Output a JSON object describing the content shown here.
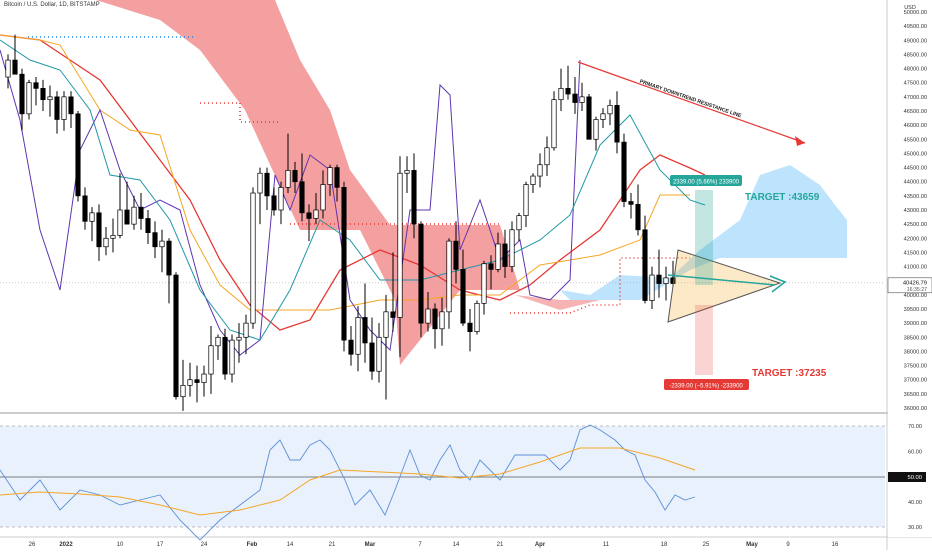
{
  "header": {
    "symbol_line": "Bitcoin / U.S. Dollar, 1D, BITSTAMP",
    "currency": "USD"
  },
  "price_axis": {
    "ticks": [
      "50000.00",
      "49500.00",
      "49000.00",
      "48500.00",
      "48000.00",
      "47500.00",
      "47000.00",
      "46500.00",
      "46000.00",
      "45500.00",
      "45000.00",
      "44500.00",
      "44000.00",
      "43500.00",
      "43000.00",
      "42500.00",
      "42000.00",
      "41500.00",
      "41000.00",
      "40500.00",
      "40000.00",
      "39500.00",
      "39000.00",
      "38500.00",
      "38000.00",
      "37500.00",
      "37000.00",
      "36500.00",
      "36000.00"
    ],
    "last_price": "40426.79",
    "countdown": "16:35:27"
  },
  "rsi_axis": {
    "ticks": [
      "70.00",
      "60.00",
      "50.00",
      "40.00",
      "30.00"
    ],
    "current": "50.00"
  },
  "time_axis": {
    "labels": [
      "26",
      "2022",
      "10",
      "17",
      "24",
      "Feb",
      "14",
      "21",
      "Mar",
      "7",
      "14",
      "21",
      "Apr",
      "11",
      "18",
      "25",
      "May",
      "9",
      "16"
    ]
  },
  "annotations": {
    "trendline_label": "PRIMARY DOWNTREND RESISTANCE LINE",
    "target_up": "TARGET :43659",
    "target_down": "TARGET :37235",
    "long_box_label": "2339.00 (5.66%) 233900",
    "short_box_label": "-2339.00 (−5.91%) -233900"
  },
  "colors": {
    "up_candle": "#ffffff",
    "down_candle": "#000000",
    "cloud_bear": "#f08080",
    "cloud_bull": "#87cefa",
    "ema_red": "#e53935",
    "orange": "#f5a623",
    "purple": "#5e35b1",
    "teal": "#2196a6",
    "rsi_line": "#5b8fd6",
    "rsi_ma": "#f5a623",
    "target_up": "#26a69a",
    "target_down": "#e53935"
  },
  "chart_data": {
    "type": "candlestick",
    "title": "Bitcoin / U.S. Dollar, 1D, BITSTAMP",
    "ylim": [
      36000,
      50000
    ],
    "candles": [
      [
        47700,
        48500,
        47300,
        48300
      ],
      [
        48300,
        49200,
        47900,
        47800
      ],
      [
        47800,
        48000,
        45800,
        46400
      ],
      [
        46400,
        47600,
        46200,
        47500
      ],
      [
        47500,
        47700,
        46700,
        47300
      ],
      [
        47300,
        47600,
        46500,
        46900
      ],
      [
        46900,
        47400,
        46300,
        47000
      ],
      [
        47000,
        47200,
        45700,
        46200
      ],
      [
        46200,
        47200,
        45800,
        47000
      ],
      [
        47000,
        47200,
        45900,
        46400
      ],
      [
        46400,
        46500,
        43300,
        43500
      ],
      [
        43500,
        43800,
        42300,
        42600
      ],
      [
        42600,
        43100,
        41900,
        42900
      ],
      [
        42900,
        43200,
        41200,
        41700
      ],
      [
        41700,
        42400,
        41400,
        42000
      ],
      [
        42000,
        42700,
        41500,
        42100
      ],
      [
        42100,
        44300,
        42000,
        43000
      ],
      [
        43000,
        44000,
        42500,
        42500
      ],
      [
        42500,
        43500,
        42300,
        43100
      ],
      [
        43100,
        43600,
        42300,
        42700
      ],
      [
        42700,
        43000,
        41800,
        42200
      ],
      [
        42200,
        42600,
        41300,
        41700
      ],
      [
        41700,
        42300,
        40800,
        41900
      ],
      [
        41900,
        42000,
        39700,
        40700
      ],
      [
        40700,
        40800,
        36300,
        36400
      ],
      [
        36400,
        37700,
        35900,
        36800
      ],
      [
        36800,
        37600,
        36400,
        37000
      ],
      [
        37000,
        37500,
        36200,
        36900
      ],
      [
        36900,
        37500,
        36400,
        37200
      ],
      [
        37200,
        38900,
        36500,
        38200
      ],
      [
        38200,
        38600,
        37700,
        38500
      ],
      [
        38500,
        38800,
        37000,
        37200
      ],
      [
        37200,
        38600,
        36900,
        38400
      ],
      [
        38400,
        39000,
        37600,
        38500
      ],
      [
        38500,
        39300,
        37900,
        39000
      ],
      [
        39000,
        43800,
        38800,
        43600
      ],
      [
        43600,
        44500,
        42500,
        44300
      ],
      [
        44300,
        44500,
        43000,
        43500
      ],
      [
        43500,
        43800,
        42800,
        43000
      ],
      [
        43000,
        44000,
        42500,
        43800
      ],
      [
        43800,
        45700,
        43600,
        44400
      ],
      [
        44400,
        44700,
        43600,
        44000
      ],
      [
        44000,
        45000,
        42600,
        42900
      ],
      [
        42900,
        43200,
        41900,
        42700
      ],
      [
        42700,
        43600,
        42500,
        43000
      ],
      [
        43000,
        44400,
        42700,
        43900
      ],
      [
        43900,
        44600,
        43500,
        44500
      ],
      [
        44500,
        44600,
        43300,
        43800
      ],
      [
        43800,
        44000,
        38000,
        38400
      ],
      [
        38400,
        38900,
        37500,
        37900
      ],
      [
        37900,
        39600,
        37300,
        39200
      ],
      [
        39200,
        40400,
        37600,
        38300
      ],
      [
        38300,
        39200,
        37000,
        37300
      ],
      [
        37300,
        39000,
        36900,
        38500
      ],
      [
        38500,
        40000,
        36300,
        39400
      ],
      [
        39400,
        41500,
        38700,
        39200
      ],
      [
        39200,
        44900,
        37800,
        44300
      ],
      [
        44300,
        44900,
        43600,
        44400
      ],
      [
        44400,
        45000,
        42000,
        42500
      ],
      [
        42500,
        42600,
        38500,
        39000
      ],
      [
        39000,
        40100,
        38700,
        39500
      ],
      [
        39500,
        39700,
        38100,
        38800
      ],
      [
        38800,
        39900,
        38200,
        39400
      ],
      [
        39400,
        42000,
        38800,
        41900
      ],
      [
        41900,
        42600,
        40400,
        40900
      ],
      [
        40900,
        41600,
        38900,
        39000
      ],
      [
        39000,
        39500,
        38000,
        38700
      ],
      [
        38700,
        39800,
        38600,
        39700
      ],
      [
        39700,
        41200,
        39300,
        41100
      ],
      [
        41100,
        41400,
        40200,
        40900
      ],
      [
        40900,
        42200,
        40800,
        41800
      ],
      [
        41800,
        42300,
        40600,
        41000
      ],
      [
        41000,
        42600,
        40800,
        42300
      ],
      [
        42300,
        42900,
        41900,
        42800
      ],
      [
        42800,
        44000,
        42400,
        43900
      ],
      [
        43900,
        44300,
        43600,
        44200
      ],
      [
        44200,
        45000,
        43800,
        44600
      ],
      [
        44600,
        45600,
        44200,
        45200
      ],
      [
        45200,
        47200,
        45100,
        46900
      ],
      [
        46900,
        48000,
        46500,
        47300
      ],
      [
        47300,
        48100,
        46900,
        47100
      ],
      [
        47100,
        47700,
        46400,
        46800
      ],
      [
        46800,
        47500,
        46500,
        47000
      ],
      [
        47000,
        47100,
        45500,
        45500
      ],
      [
        45500,
        46300,
        45100,
        46200
      ],
      [
        46200,
        46600,
        45900,
        46400
      ],
      [
        46400,
        46900,
        46000,
        46700
      ],
      [
        46700,
        47200,
        45000,
        45400
      ],
      [
        45400,
        45700,
        43100,
        43300
      ],
      [
        43300,
        43600,
        42700,
        43200
      ],
      [
        43200,
        43900,
        42100,
        42300
      ],
      [
        42300,
        42800,
        39700,
        39800
      ],
      [
        39800,
        41000,
        39500,
        40700
      ],
      [
        40700,
        41600,
        39900,
        40400
      ],
      [
        40400,
        41000,
        39800,
        40600
      ],
      [
        40600,
        41200,
        40300,
        40400
      ]
    ]
  }
}
